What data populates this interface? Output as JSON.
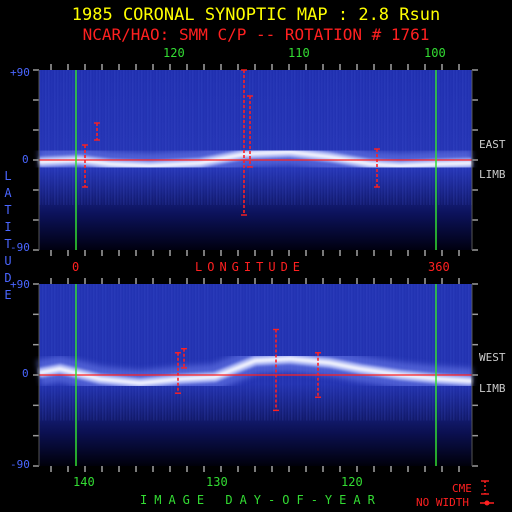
{
  "title": "1985 CORONAL SYNOPTIC MAP : 2.8 Rsun",
  "subtitle": "NCAR/HAO: SMM C/P -- ROTATION # 1761",
  "y_axis_label": "LATITUDE",
  "colors": {
    "title": "#ffff00",
    "subtitle": "#ff2020",
    "green": "#33dd33",
    "blue_label": "#4a66ff",
    "map_bg": "#1a2590",
    "streamer": "#ffffff",
    "equator": "#ff2020"
  },
  "chart_data": [
    {
      "type": "heatmap",
      "panel": "top",
      "limb_label": [
        "EAST",
        "LIMB"
      ],
      "ylim": [
        -90,
        90
      ],
      "y_ticks": [
        "+90",
        "0",
        "-90"
      ],
      "top_axis_ticks": [
        "120",
        "110",
        "100"
      ],
      "bottom_axis_ticks": [
        "0",
        "360"
      ],
      "xlabel": "LONGITUDE",
      "cme_markers": [
        {
          "lat_top": 15,
          "lat_bottom": -27
        },
        {
          "lat_top": 37,
          "lat_bottom": 20
        },
        {
          "lat_top": 90,
          "lat_bottom": -55
        },
        {
          "lat_top": 64,
          "lat_bottom": -7
        },
        {
          "lat_top": 11,
          "lat_bottom": -27
        }
      ]
    },
    {
      "type": "heatmap",
      "panel": "bottom",
      "limb_label": [
        "WEST",
        "LIMB"
      ],
      "ylim": [
        -90,
        90
      ],
      "y_ticks": [
        "+90",
        "0",
        "-90"
      ],
      "bottom_axis_ticks": [
        "140",
        "130",
        "120"
      ],
      "xlabel": "IMAGE DAY-OF-YEAR",
      "cme_markers": [
        {
          "lat_top": 22,
          "lat_bottom": -18
        },
        {
          "lat_top": 26,
          "lat_bottom": 7
        },
        {
          "lat_top": 45,
          "lat_bottom": -35
        },
        {
          "lat_top": 22,
          "lat_bottom": -22
        }
      ]
    }
  ],
  "legend": {
    "cme": "CME",
    "no_width": "NO WIDTH"
  }
}
